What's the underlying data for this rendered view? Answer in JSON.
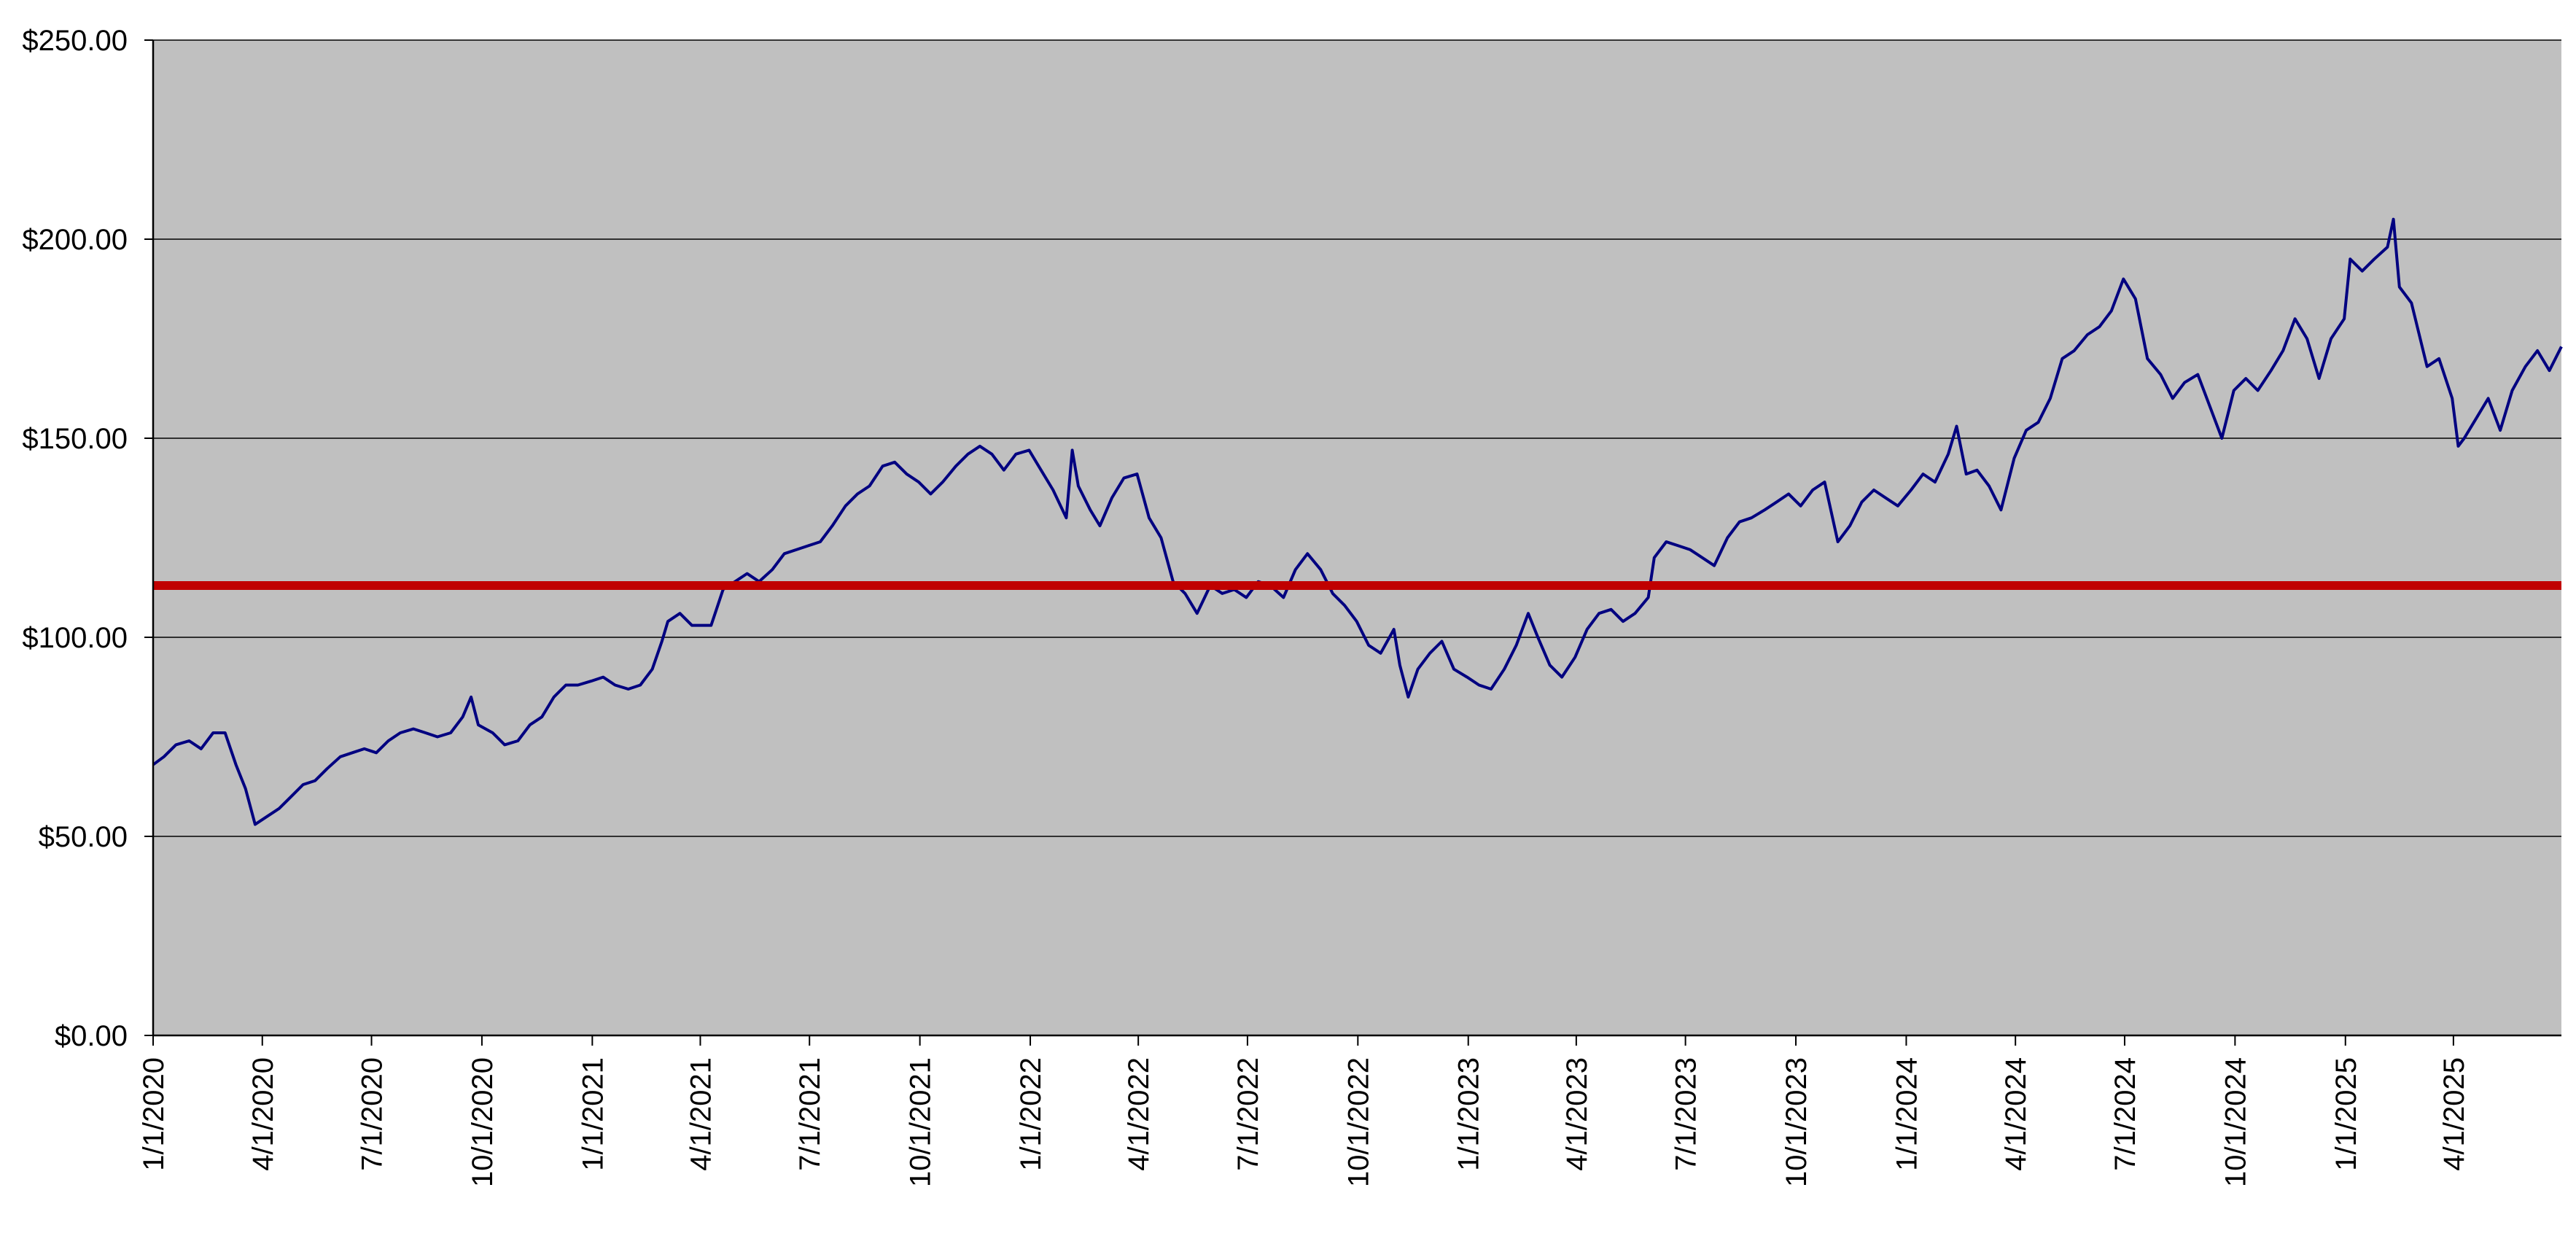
{
  "chart_data": {
    "type": "line",
    "title": "",
    "xlabel": "",
    "ylabel": "",
    "ylim": [
      0,
      250
    ],
    "y_ticks": [
      0,
      50,
      100,
      150,
      200,
      250
    ],
    "y_tick_labels": [
      "$0.00",
      "$50.00",
      "$100.00",
      "$150.00",
      "$200.00",
      "$250.00"
    ],
    "x_range": [
      "2020-01-01",
      "2025-06-30"
    ],
    "x_ticks": [
      "2020-01-01",
      "2020-04-01",
      "2020-07-01",
      "2020-10-01",
      "2021-01-01",
      "2021-04-01",
      "2021-07-01",
      "2021-10-01",
      "2022-01-01",
      "2022-04-01",
      "2022-07-01",
      "2022-10-01",
      "2023-01-01",
      "2023-04-01",
      "2023-07-01",
      "2023-10-01",
      "2024-01-01",
      "2024-04-01",
      "2024-07-01",
      "2024-10-01",
      "2025-01-01",
      "2025-04-01"
    ],
    "x_tick_labels": [
      "1/1/2020",
      "4/1/2020",
      "7/1/2020",
      "10/1/2020",
      "1/1/2021",
      "4/1/2021",
      "7/1/2021",
      "10/1/2021",
      "1/1/2022",
      "4/1/2022",
      "7/1/2022",
      "10/1/2022",
      "1/1/2023",
      "4/1/2023",
      "7/1/2023",
      "10/1/2023",
      "1/1/2024",
      "4/1/2024",
      "7/1/2024",
      "10/1/2024",
      "1/1/2025",
      "4/1/2025"
    ],
    "grid": true,
    "legend": "none",
    "plot_background": "#c0c0c0",
    "reference_line": {
      "value": 113,
      "color": "#c00000"
    },
    "series": [
      {
        "color": "#000080",
        "points": [
          [
            "2020-01-01",
            68
          ],
          [
            "2020-01-10",
            70
          ],
          [
            "2020-01-20",
            73
          ],
          [
            "2020-01-31",
            74
          ],
          [
            "2020-02-10",
            72
          ],
          [
            "2020-02-20",
            76
          ],
          [
            "2020-03-01",
            76
          ],
          [
            "2020-03-10",
            68
          ],
          [
            "2020-03-18",
            62
          ],
          [
            "2020-03-26",
            53
          ],
          [
            "2020-04-05",
            55
          ],
          [
            "2020-04-15",
            57
          ],
          [
            "2020-04-25",
            60
          ],
          [
            "2020-05-05",
            63
          ],
          [
            "2020-05-15",
            64
          ],
          [
            "2020-05-25",
            67
          ],
          [
            "2020-06-05",
            70
          ],
          [
            "2020-06-15",
            71
          ],
          [
            "2020-06-25",
            72
          ],
          [
            "2020-07-05",
            71
          ],
          [
            "2020-07-15",
            74
          ],
          [
            "2020-07-25",
            76
          ],
          [
            "2020-08-05",
            77
          ],
          [
            "2020-08-15",
            76
          ],
          [
            "2020-08-25",
            75
          ],
          [
            "2020-09-05",
            76
          ],
          [
            "2020-09-15",
            80
          ],
          [
            "2020-09-22",
            85
          ],
          [
            "2020-09-28",
            78
          ],
          [
            "2020-10-10",
            76
          ],
          [
            "2020-10-20",
            73
          ],
          [
            "2020-10-31",
            74
          ],
          [
            "2020-11-10",
            78
          ],
          [
            "2020-11-20",
            80
          ],
          [
            "2020-11-30",
            85
          ],
          [
            "2020-12-10",
            88
          ],
          [
            "2020-12-20",
            88
          ],
          [
            "2020-12-31",
            89
          ],
          [
            "2021-01-10",
            90
          ],
          [
            "2021-01-20",
            88
          ],
          [
            "2021-01-31",
            87
          ],
          [
            "2021-02-10",
            88
          ],
          [
            "2021-02-20",
            92
          ],
          [
            "2021-02-28",
            99
          ],
          [
            "2021-03-05",
            104
          ],
          [
            "2021-03-15",
            106
          ],
          [
            "2021-03-25",
            103
          ],
          [
            "2021-04-01",
            103
          ],
          [
            "2021-04-10",
            103
          ],
          [
            "2021-04-20",
            112
          ],
          [
            "2021-04-30",
            114
          ],
          [
            "2021-05-10",
            116
          ],
          [
            "2021-05-20",
            114
          ],
          [
            "2021-05-31",
            117
          ],
          [
            "2021-06-10",
            121
          ],
          [
            "2021-06-20",
            122
          ],
          [
            "2021-06-30",
            123
          ],
          [
            "2021-07-10",
            124
          ],
          [
            "2021-07-20",
            128
          ],
          [
            "2021-07-31",
            133
          ],
          [
            "2021-08-10",
            136
          ],
          [
            "2021-08-20",
            138
          ],
          [
            "2021-08-31",
            143
          ],
          [
            "2021-09-10",
            144
          ],
          [
            "2021-09-20",
            141
          ],
          [
            "2021-09-30",
            139
          ],
          [
            "2021-10-10",
            136
          ],
          [
            "2021-10-20",
            139
          ],
          [
            "2021-10-31",
            143
          ],
          [
            "2021-11-10",
            146
          ],
          [
            "2021-11-20",
            148
          ],
          [
            "2021-11-30",
            146
          ],
          [
            "2021-12-10",
            142
          ],
          [
            "2021-12-20",
            146
          ],
          [
            "2021-12-31",
            147
          ],
          [
            "2022-01-10",
            142
          ],
          [
            "2022-01-20",
            137
          ],
          [
            "2022-01-31",
            130
          ],
          [
            "2022-02-05",
            147
          ],
          [
            "2022-02-10",
            138
          ],
          [
            "2022-02-20",
            132
          ],
          [
            "2022-02-28",
            128
          ],
          [
            "2022-03-10",
            135
          ],
          [
            "2022-03-20",
            140
          ],
          [
            "2022-03-31",
            141
          ],
          [
            "2022-04-10",
            130
          ],
          [
            "2022-04-20",
            125
          ],
          [
            "2022-04-30",
            114
          ],
          [
            "2022-05-10",
            111
          ],
          [
            "2022-05-20",
            106
          ],
          [
            "2022-05-31",
            113
          ],
          [
            "2022-06-10",
            111
          ],
          [
            "2022-06-20",
            112
          ],
          [
            "2022-06-30",
            110
          ],
          [
            "2022-07-10",
            114
          ],
          [
            "2022-07-20",
            113
          ],
          [
            "2022-07-31",
            110
          ],
          [
            "2022-08-10",
            117
          ],
          [
            "2022-08-20",
            121
          ],
          [
            "2022-08-31",
            117
          ],
          [
            "2022-09-10",
            111
          ],
          [
            "2022-09-20",
            108
          ],
          [
            "2022-09-30",
            104
          ],
          [
            "2022-10-10",
            98
          ],
          [
            "2022-10-20",
            96
          ],
          [
            "2022-10-31",
            102
          ],
          [
            "2022-11-05",
            93
          ],
          [
            "2022-11-12",
            85
          ],
          [
            "2022-11-20",
            92
          ],
          [
            "2022-11-30",
            96
          ],
          [
            "2022-12-10",
            99
          ],
          [
            "2022-12-20",
            92
          ],
          [
            "2022-12-31",
            90
          ],
          [
            "2023-01-10",
            88
          ],
          [
            "2023-01-20",
            87
          ],
          [
            "2023-01-31",
            92
          ],
          [
            "2023-02-10",
            98
          ],
          [
            "2023-02-20",
            106
          ],
          [
            "2023-02-28",
            100
          ],
          [
            "2023-03-10",
            93
          ],
          [
            "2023-03-20",
            90
          ],
          [
            "2023-03-31",
            95
          ],
          [
            "2023-04-10",
            102
          ],
          [
            "2023-04-20",
            106
          ],
          [
            "2023-04-30",
            107
          ],
          [
            "2023-05-10",
            104
          ],
          [
            "2023-05-20",
            106
          ],
          [
            "2023-05-31",
            110
          ],
          [
            "2023-06-05",
            120
          ],
          [
            "2023-06-15",
            124
          ],
          [
            "2023-06-25",
            123
          ],
          [
            "2023-07-05",
            122
          ],
          [
            "2023-07-15",
            120
          ],
          [
            "2023-07-25",
            118
          ],
          [
            "2023-08-05",
            125
          ],
          [
            "2023-08-15",
            129
          ],
          [
            "2023-08-25",
            130
          ],
          [
            "2023-09-05",
            132
          ],
          [
            "2023-09-15",
            134
          ],
          [
            "2023-09-25",
            136
          ],
          [
            "2023-10-05",
            133
          ],
          [
            "2023-10-15",
            137
          ],
          [
            "2023-10-25",
            139
          ],
          [
            "2023-11-05",
            124
          ],
          [
            "2023-11-15",
            128
          ],
          [
            "2023-11-25",
            134
          ],
          [
            "2023-12-05",
            137
          ],
          [
            "2023-12-15",
            135
          ],
          [
            "2023-12-25",
            133
          ],
          [
            "2024-01-05",
            137
          ],
          [
            "2024-01-15",
            141
          ],
          [
            "2024-01-25",
            139
          ],
          [
            "2024-02-05",
            146
          ],
          [
            "2024-02-12",
            153
          ],
          [
            "2024-02-20",
            141
          ],
          [
            "2024-02-29",
            142
          ],
          [
            "2024-03-10",
            138
          ],
          [
            "2024-03-20",
            132
          ],
          [
            "2024-03-31",
            145
          ],
          [
            "2024-04-10",
            152
          ],
          [
            "2024-04-20",
            154
          ],
          [
            "2024-04-30",
            160
          ],
          [
            "2024-05-10",
            170
          ],
          [
            "2024-05-20",
            172
          ],
          [
            "2024-05-31",
            176
          ],
          [
            "2024-06-10",
            178
          ],
          [
            "2024-06-20",
            182
          ],
          [
            "2024-06-30",
            190
          ],
          [
            "2024-07-10",
            185
          ],
          [
            "2024-07-20",
            170
          ],
          [
            "2024-07-31",
            166
          ],
          [
            "2024-08-10",
            160
          ],
          [
            "2024-08-20",
            164
          ],
          [
            "2024-08-31",
            166
          ],
          [
            "2024-09-10",
            158
          ],
          [
            "2024-09-20",
            150
          ],
          [
            "2024-09-30",
            162
          ],
          [
            "2024-10-10",
            165
          ],
          [
            "2024-10-20",
            162
          ],
          [
            "2024-10-31",
            167
          ],
          [
            "2024-11-10",
            172
          ],
          [
            "2024-11-20",
            180
          ],
          [
            "2024-11-30",
            175
          ],
          [
            "2024-12-10",
            165
          ],
          [
            "2024-12-20",
            175
          ],
          [
            "2024-12-31",
            180
          ],
          [
            "2025-01-05",
            195
          ],
          [
            "2025-01-15",
            192
          ],
          [
            "2025-01-25",
            195
          ],
          [
            "2025-02-05",
            198
          ],
          [
            "2025-02-10",
            205
          ],
          [
            "2025-02-15",
            188
          ],
          [
            "2025-02-25",
            184
          ],
          [
            "2025-03-10",
            168
          ],
          [
            "2025-03-20",
            170
          ],
          [
            "2025-03-31",
            160
          ],
          [
            "2025-04-05",
            148
          ],
          [
            "2025-04-10",
            150
          ],
          [
            "2025-04-20",
            155
          ],
          [
            "2025-04-30",
            160
          ],
          [
            "2025-05-10",
            152
          ],
          [
            "2025-05-20",
            162
          ],
          [
            "2025-05-31",
            168
          ],
          [
            "2025-06-10",
            172
          ],
          [
            "2025-06-20",
            167
          ],
          [
            "2025-06-30",
            173
          ]
        ]
      }
    ]
  }
}
